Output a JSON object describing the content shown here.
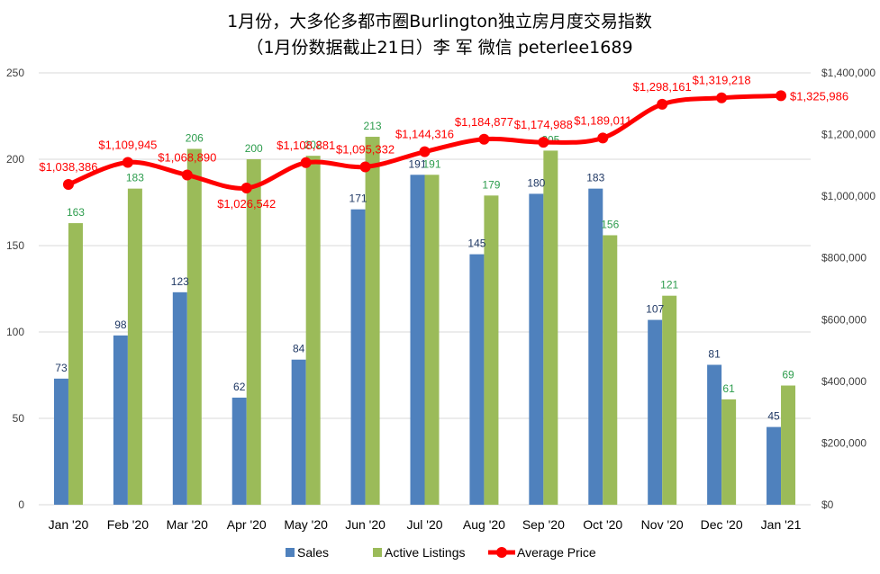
{
  "chart_data": {
    "type": "bar",
    "title": "1月份，大多伦多都市圈Burlington独立房月度交易指数",
    "subtitle": "（1月份数据截止21日）李 军  微信  peterlee1689",
    "categories": [
      "Jan '20",
      "Feb '20",
      "Mar '20",
      "Apr '20",
      "May '20",
      "Jun '20",
      "Jul '20",
      "Aug '20",
      "Sep '20",
      "Oct '20",
      "Nov '20",
      "Dec '20",
      "Jan '21"
    ],
    "series": [
      {
        "name": "Sales",
        "type": "bar",
        "axis": "left",
        "color": "#4f81bd",
        "label_color": "#1f3864",
        "values": [
          73,
          98,
          123,
          62,
          84,
          171,
          191,
          145,
          180,
          183,
          107,
          81,
          45
        ]
      },
      {
        "name": "Active Listings",
        "type": "bar",
        "axis": "left",
        "color": "#9bbb59",
        "label_color": "#2e9d4e",
        "values": [
          163,
          183,
          206,
          200,
          202,
          213,
          191,
          179,
          205,
          156,
          121,
          61,
          69
        ]
      },
      {
        "name": "Average Price",
        "type": "line",
        "axis": "right",
        "color": "#ff0000",
        "label_color": "#ff0000",
        "values": [
          1038386,
          1109945,
          1068890,
          1026542,
          1108881,
          1095332,
          1144316,
          1184877,
          1174988,
          1189011,
          1298161,
          1319218,
          1325986
        ],
        "labels": [
          "$1,038,386",
          "$1,109,945",
          "$1,068,890",
          "$1,026,542",
          "$1,108,881",
          "$1,095,332",
          "$1,144,316",
          "$1,184,877",
          "$1,174,988",
          "$1,189,011",
          "$1,298,161",
          "$1,319,218",
          "$1,325,986"
        ]
      }
    ],
    "y_left": {
      "ylim": [
        0,
        250
      ],
      "ticks": [
        "0",
        "50",
        "100",
        "150",
        "200",
        "250"
      ]
    },
    "y_right": {
      "ylim": [
        0,
        1400000
      ],
      "ticks": [
        "$0",
        "$200,000",
        "$400,000",
        "$600,000",
        "$800,000",
        "$1,000,000",
        "$1,200,000",
        "$1,400,000"
      ]
    },
    "grid": true,
    "gridline_color": "#d9d9d9",
    "legend_position": "bottom"
  }
}
